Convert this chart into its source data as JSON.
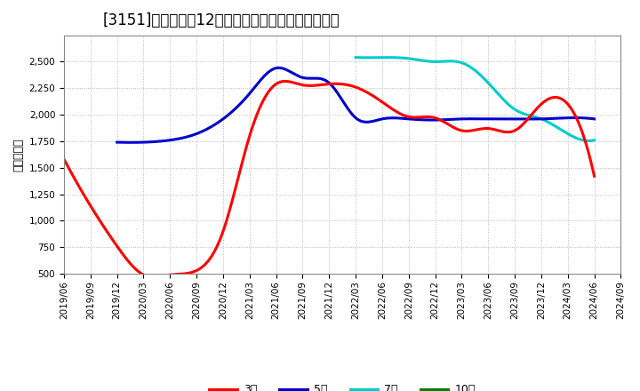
{
  "title": "[3151]　経常利益12か月移動合計の標準偏差の推移",
  "ylabel": "（百万円）",
  "ylim": [
    500,
    2750
  ],
  "yticks": [
    500,
    750,
    1000,
    1250,
    1500,
    1750,
    2000,
    2250,
    2500
  ],
  "bg_color": "#ffffff",
  "plot_bg_color": "#ffffff",
  "grid_color": "#aaaaaa",
  "series": {
    "3年": {
      "color": "#ff0000",
      "dates_num": [
        0,
        3,
        6,
        9,
        12,
        15,
        18,
        21,
        24,
        27,
        30,
        33,
        36,
        39,
        42,
        45,
        48,
        51,
        54,
        57,
        60
      ],
      "values": [
        1580,
        1140,
        760,
        490,
        490,
        530,
        900,
        1800,
        2290,
        2280,
        2290,
        2260,
        2120,
        1980,
        1970,
        1850,
        1870,
        1850,
        2100,
        2100,
        1420
      ]
    },
    "5年": {
      "color": "#0000cc",
      "dates_num": [
        6,
        9,
        12,
        15,
        18,
        21,
        24,
        27,
        30,
        33,
        36,
        39,
        42,
        45,
        48,
        51,
        54,
        57,
        60
      ],
      "values": [
        1740,
        1740,
        1760,
        1820,
        1960,
        2200,
        2440,
        2350,
        2300,
        1970,
        1960,
        1960,
        1950,
        1960,
        1960,
        1960,
        1960,
        1970,
        1960
      ]
    },
    "7年": {
      "color": "#00cccc",
      "dates_num": [
        33,
        36,
        39,
        42,
        45,
        48,
        51,
        54,
        57,
        60
      ],
      "values": [
        2540,
        2540,
        2530,
        2500,
        2490,
        2300,
        2050,
        1960,
        1820,
        1760
      ]
    },
    "10年": {
      "color": "#008000",
      "dates_num": [],
      "values": []
    }
  },
  "x_tick_nums": [
    0,
    3,
    6,
    9,
    12,
    15,
    18,
    21,
    24,
    27,
    30,
    33,
    36,
    39,
    42,
    45,
    48,
    51,
    54,
    57,
    60,
    63
  ],
  "x_tick_labels": [
    "2019/06",
    "2019/09",
    "2019/12",
    "2020/03",
    "2020/06",
    "2020/09",
    "2020/12",
    "2021/03",
    "2021/06",
    "2021/09",
    "2021/12",
    "2022/03",
    "2022/06",
    "2022/09",
    "2022/12",
    "2023/03",
    "2023/06",
    "2023/09",
    "2023/12",
    "2024/03",
    "2024/06",
    "2024/09"
  ],
  "title_fontsize": 12,
  "label_fontsize": 9,
  "tick_fontsize": 7.5,
  "legend_fontsize": 9,
  "linewidth": 2.2
}
